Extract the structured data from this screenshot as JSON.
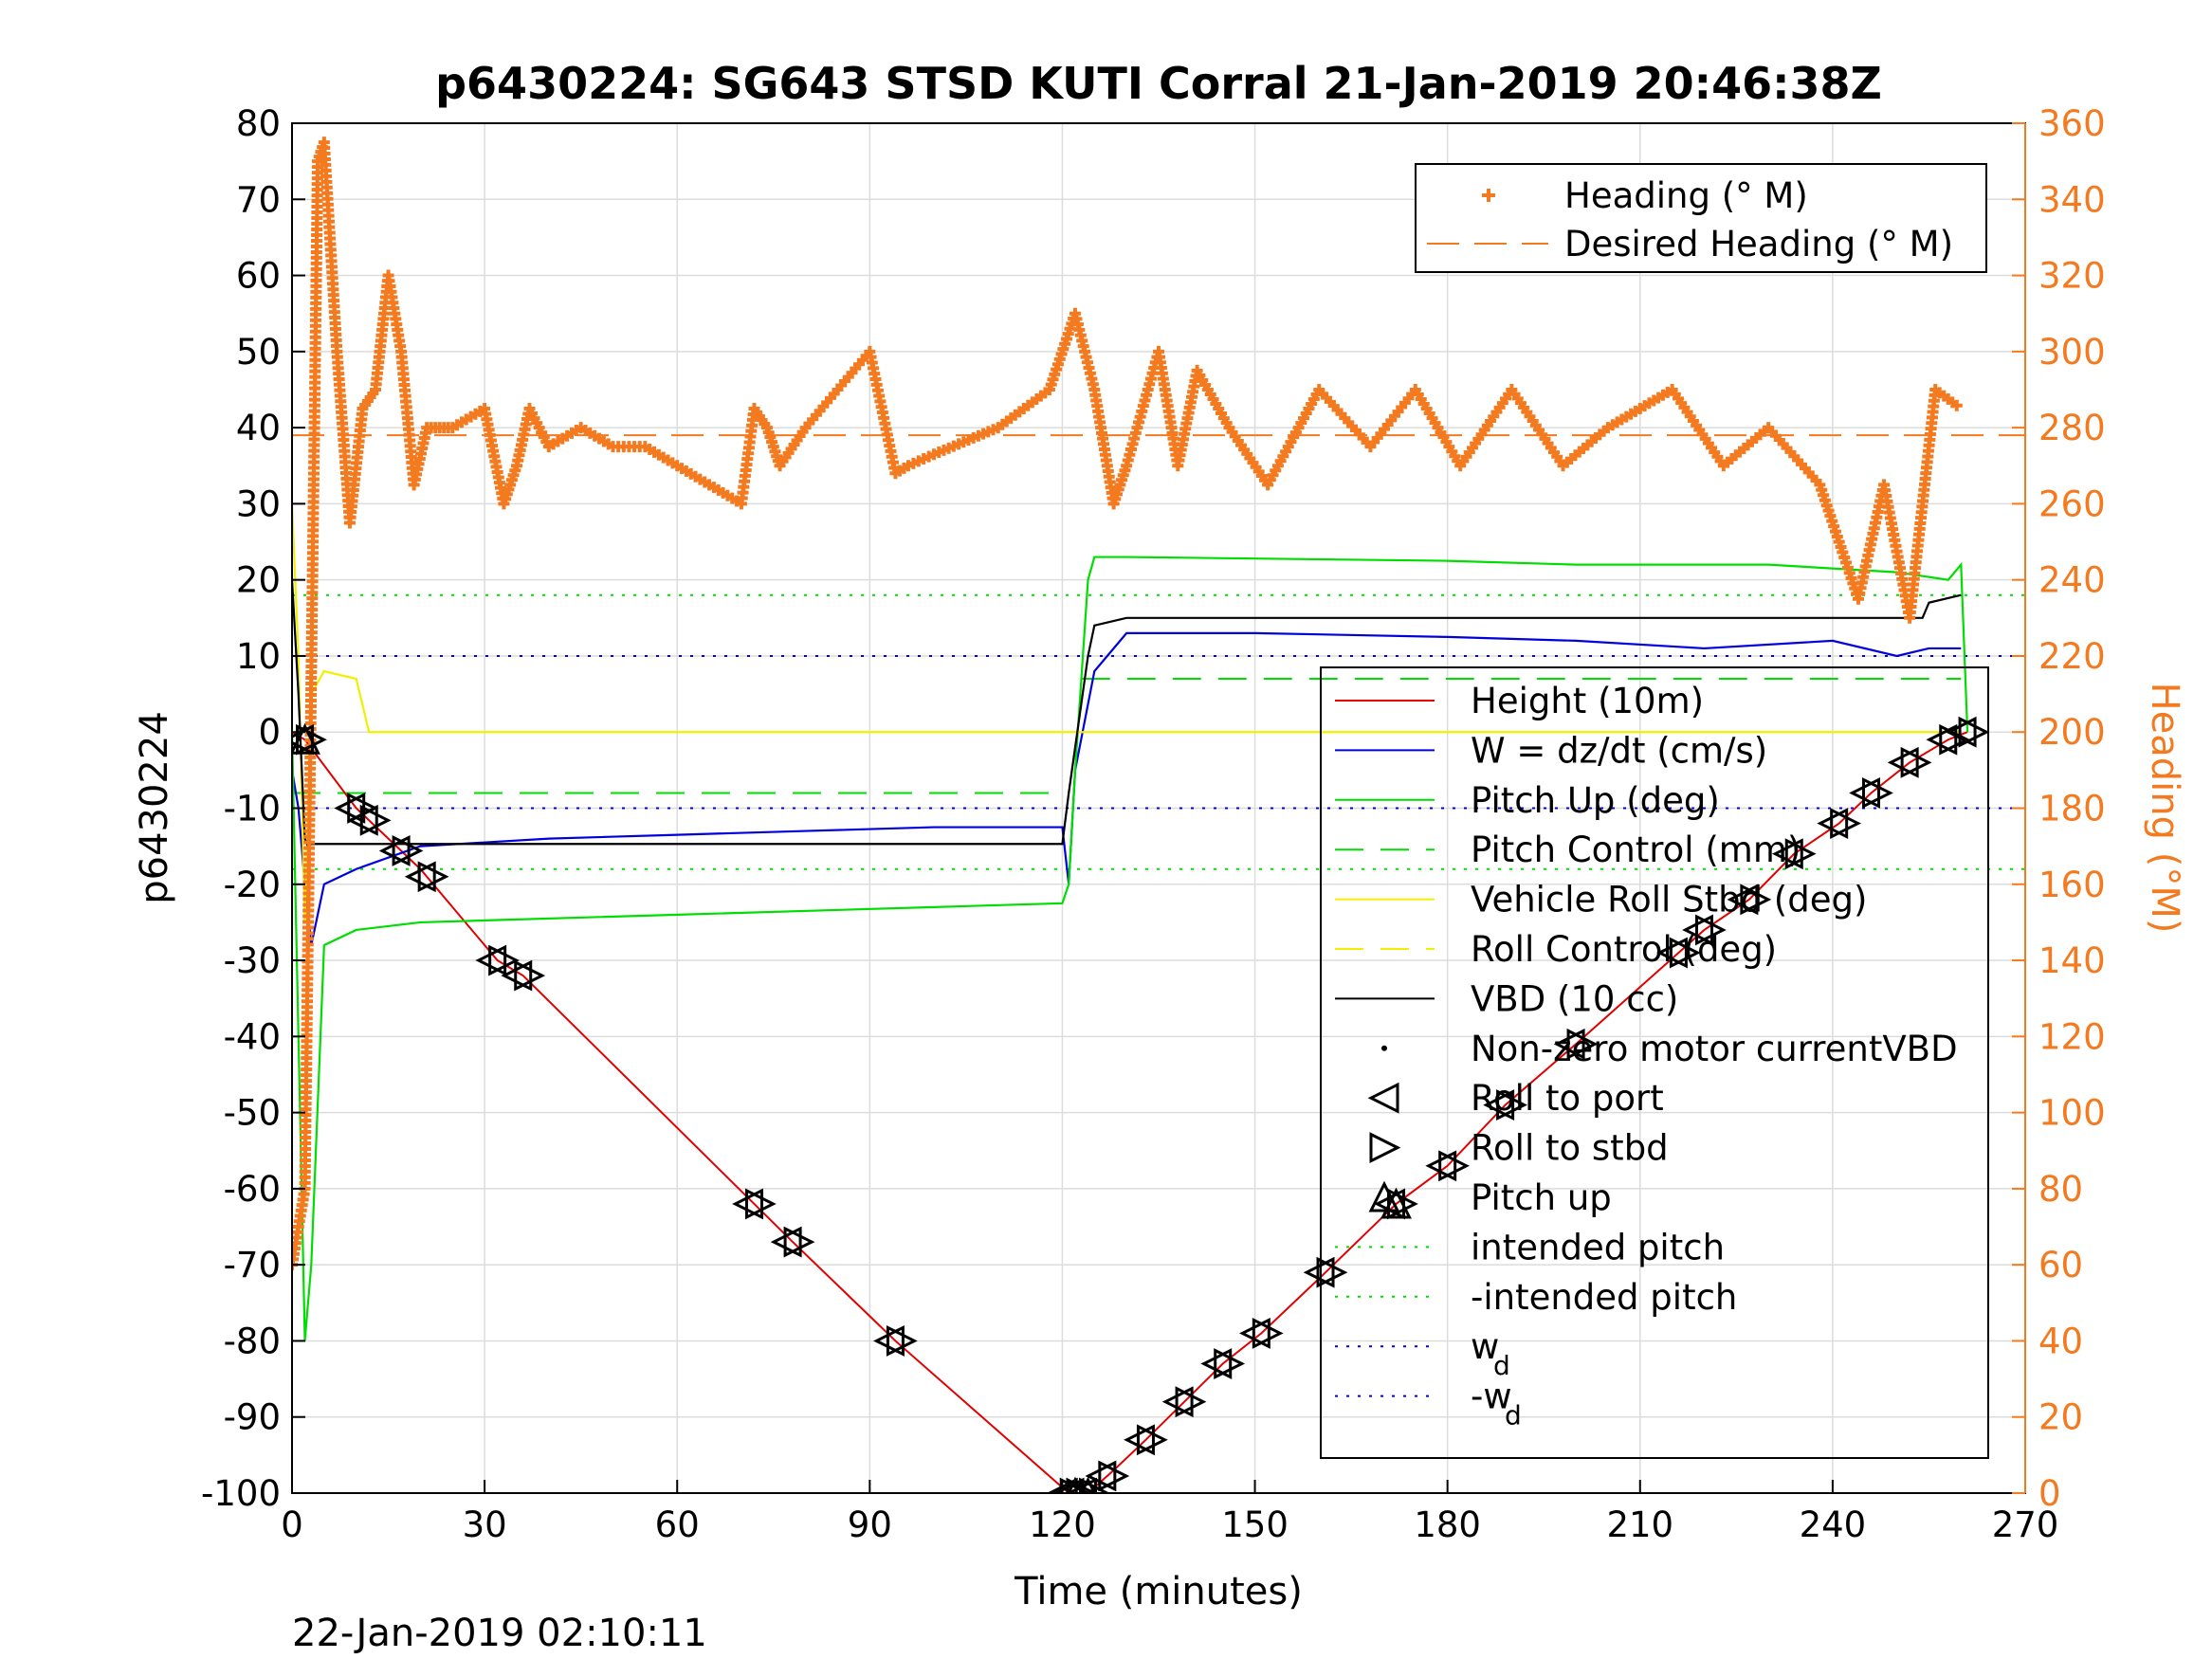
{
  "chart_data": {
    "type": "line",
    "title": "p6430224: SG643 STSD KUTI Corral 21-Jan-2019 20:46:38Z",
    "xlabel": "Time (minutes)",
    "ylabel": "p6430224",
    "y2label": "Heading (°M)",
    "footer": "22-Jan-2019 02:10:11",
    "xlim": [
      0,
      270
    ],
    "ylim": [
      -100,
      80
    ],
    "y2lim": [
      0,
      360
    ],
    "x_ticks": [
      "0",
      "30",
      "60",
      "90",
      "120",
      "150",
      "180",
      "210",
      "240",
      "270"
    ],
    "y_ticks": [
      "80",
      "70",
      "60",
      "50",
      "40",
      "30",
      "20",
      "10",
      "0",
      "-10",
      "-20",
      "-30",
      "-40",
      "-50",
      "-60",
      "-70",
      "-80",
      "-90",
      "-100"
    ],
    "y2_ticks": [
      "360",
      "340",
      "320",
      "300",
      "280",
      "260",
      "240",
      "220",
      "200",
      "180",
      "160",
      "140",
      "120",
      "100",
      "80",
      "60",
      "40",
      "20",
      "0"
    ],
    "grid": true,
    "colors": {
      "heading": "#f47a20",
      "height": "#e00000",
      "w": "#0000dd",
      "pitch": "#00dd00",
      "roll": "#f0f000",
      "vbd": "#000000"
    },
    "legend_top": [
      {
        "label": "Heading (° M)",
        "color": "#f47a20",
        "style": "plus"
      },
      {
        "label": "Desired Heading (° M)",
        "color": "#f47a20",
        "style": "dash"
      }
    ],
    "legend_main": [
      {
        "label": "Height (10m)",
        "color": "#e00000",
        "style": "solid"
      },
      {
        "label": "W = dz/dt (cm/s)",
        "color": "#0000dd",
        "style": "solid"
      },
      {
        "label": "Pitch Up (deg)",
        "color": "#00dd00",
        "style": "solid"
      },
      {
        "label": "Pitch Control (mm)",
        "color": "#00dd00",
        "style": "dash"
      },
      {
        "label": "Vehicle Roll Stbd (deg)",
        "color": "#f0f000",
        "style": "solid"
      },
      {
        "label": "Roll Control (deg)",
        "color": "#f0f000",
        "style": "dash"
      },
      {
        "label": "VBD (10 cc)",
        "color": "#000000",
        "style": "solid"
      },
      {
        "label": "Non-zero motor currentVBD",
        "color": "#000000",
        "style": "dot"
      },
      {
        "label": "Roll to port",
        "color": "#000000",
        "style": "tri-left"
      },
      {
        "label": "Roll to stbd",
        "color": "#000000",
        "style": "tri-right"
      },
      {
        "label": "Pitch up",
        "color": "#000000",
        "style": "tri-up"
      },
      {
        "label": "intended pitch",
        "color": "#00dd00",
        "style": "dotted"
      },
      {
        "label": "-intended pitch",
        "color": "#00dd00",
        "style": "dotted"
      },
      {
        "label": "w",
        "sub": "d",
        "color": "#0000dd",
        "style": "dotted"
      },
      {
        "label": "-w",
        "sub": "d",
        "color": "#0000dd",
        "style": "dotted"
      }
    ],
    "series": [
      {
        "name": "Height (10m)",
        "axis": "left",
        "color": "#e00000",
        "x": [
          0,
          2,
          10,
          20,
          32,
          36,
          72,
          78,
          94,
          121,
          124,
          128,
          133,
          139,
          145,
          151,
          161,
          172,
          180,
          189,
          200,
          216,
          220,
          227,
          234,
          241,
          246,
          252,
          258,
          261
        ],
        "y": [
          0,
          -1,
          -10,
          -18,
          -30,
          -32,
          -62,
          -67,
          -80,
          -100,
          -100,
          -97,
          -93,
          -88,
          -83,
          -79,
          -71,
          -62,
          -57,
          -49,
          -41,
          -29,
          -26,
          -22,
          -16,
          -12,
          -8,
          -4,
          -1,
          0
        ]
      },
      {
        "name": "W = dz/dt (cm/s)",
        "axis": "left",
        "color": "#0000dd",
        "x": [
          0,
          1,
          2,
          3,
          5,
          10,
          20,
          40,
          60,
          80,
          100,
          120,
          121,
          122,
          125,
          130,
          150,
          180,
          200,
          220,
          240,
          250,
          255,
          260
        ],
        "y": [
          -5,
          -10,
          -20,
          -28,
          -20,
          -18,
          -15,
          -14,
          -13.5,
          -13,
          -12.5,
          -12.5,
          -20,
          -5,
          8,
          13,
          13,
          12.5,
          12,
          11,
          12,
          10,
          11,
          11
        ]
      },
      {
        "name": "Pitch Up (deg)",
        "axis": "left",
        "color": "#00dd00",
        "x": [
          0,
          1,
          2,
          3,
          5,
          10,
          20,
          60,
          100,
          120,
          121,
          122,
          124,
          125,
          130,
          150,
          180,
          200,
          230,
          250,
          258,
          260,
          261
        ],
        "y": [
          0,
          -40,
          -80,
          -70,
          -28,
          -26,
          -25,
          -24,
          -23,
          -22.5,
          -20,
          -5,
          20,
          23,
          23,
          22.8,
          22.5,
          22,
          22,
          21,
          20,
          22,
          0
        ]
      },
      {
        "name": "Vehicle Roll Stbd (deg)",
        "axis": "left",
        "color": "#f0f000",
        "x": [
          0,
          1,
          2,
          3,
          5,
          10,
          12,
          20,
          60,
          100,
          119,
          120,
          122,
          125,
          130,
          160,
          200,
          240,
          260
        ],
        "y": [
          30,
          10,
          -25,
          5,
          8,
          7,
          0,
          0,
          0,
          0,
          0,
          0,
          0,
          0,
          0,
          0,
          0,
          0,
          0
        ]
      },
      {
        "name": "VBD (10 cc)",
        "axis": "left",
        "color": "#000000",
        "x": [
          0,
          1,
          2,
          2.5,
          3,
          60,
          120,
          121,
          124,
          125,
          130,
          220,
          254,
          255,
          260
        ],
        "y": [
          20,
          5,
          -14,
          -15,
          -14.7,
          -14.7,
          -14.7,
          -8,
          10,
          14,
          15,
          15,
          15,
          17,
          18
        ]
      },
      {
        "name": "Heading (° M)",
        "axis": "right",
        "color": "#f47a20",
        "x": [
          0,
          2,
          4,
          5,
          7,
          9,
          11,
          13,
          15,
          17,
          19,
          21,
          23,
          25,
          30,
          33,
          35,
          37,
          40,
          45,
          50,
          55,
          60,
          65,
          70,
          72,
          74,
          76,
          80,
          90,
          94,
          96,
          100,
          110,
          118,
          122,
          125,
          128,
          130,
          135,
          138,
          141,
          146,
          152,
          160,
          168,
          175,
          182,
          190,
          198,
          205,
          215,
          223,
          230,
          238,
          244,
          248,
          252,
          256,
          260
        ],
        "y": [
          60,
          80,
          350,
          355,
          300,
          255,
          285,
          290,
          320,
          300,
          265,
          280,
          280,
          280,
          285,
          260,
          270,
          285,
          275,
          280,
          275,
          275,
          270,
          265,
          260,
          285,
          280,
          270,
          280,
          300,
          268,
          270,
          273,
          280,
          290,
          310,
          290,
          260,
          270,
          300,
          270,
          295,
          280,
          265,
          290,
          275,
          290,
          270,
          290,
          270,
          280,
          290,
          270,
          280,
          265,
          235,
          265,
          230,
          290,
          285
        ]
      }
    ],
    "reference_lines": [
      {
        "name": "intended pitch",
        "axis": "left",
        "y": 18,
        "color": "#00dd00",
        "style": "dotted"
      },
      {
        "name": "-intended pitch",
        "axis": "left",
        "y": -18,
        "color": "#00dd00",
        "style": "dotted"
      },
      {
        "name": "w_d",
        "axis": "left",
        "y": 10,
        "color": "#0000dd",
        "style": "dotted"
      },
      {
        "name": "-w_d",
        "axis": "left",
        "y": -10,
        "color": "#0000dd",
        "style": "dotted"
      },
      {
        "name": "Desired Heading (° M)",
        "axis": "right",
        "y": 278,
        "color": "#f47a20",
        "style": "dash"
      }
    ],
    "pitch_control": [
      {
        "x": [
          0,
          120
        ],
        "y": -8
      },
      {
        "x": [
          123,
          260
        ],
        "y": 7
      }
    ],
    "markers": {
      "roll_port_stbd_x": [
        2,
        10,
        12,
        17,
        21,
        32,
        36,
        72,
        78,
        94,
        121,
        122,
        124,
        127,
        133,
        139,
        145,
        151,
        161,
        172,
        180,
        189,
        200,
        216,
        220,
        227,
        234,
        241,
        246,
        252,
        258,
        261
      ],
      "pitch_up_x": [
        2,
        122,
        124,
        172
      ]
    }
  }
}
